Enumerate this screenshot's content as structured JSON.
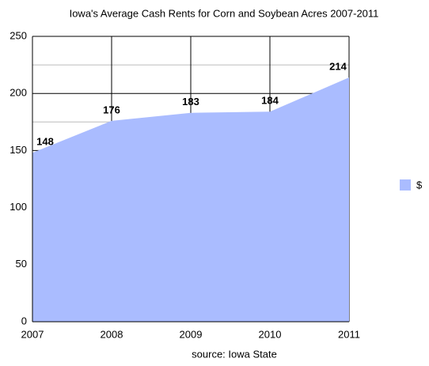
{
  "chart_data": {
    "type": "area",
    "title": "Iowa's Average Cash Rents for Corn and Soybean Acres 2007-2011",
    "subtitle": "source: Iowa State",
    "x": [
      2007,
      2008,
      2009,
      2010,
      2011
    ],
    "series": [
      {
        "name": "$",
        "color": "#aabcff",
        "values": [
          148,
          176,
          183,
          184,
          214
        ]
      }
    ],
    "xlim": [
      2007,
      2011
    ],
    "xticks": [
      2007,
      2008,
      2009,
      2010,
      2011
    ],
    "ylim": [
      0,
      250
    ],
    "yticks": [
      0,
      50,
      100,
      150,
      200,
      250
    ],
    "minor_yticks": [
      25,
      75,
      125,
      175,
      225
    ],
    "grid": true,
    "legend": "right"
  }
}
